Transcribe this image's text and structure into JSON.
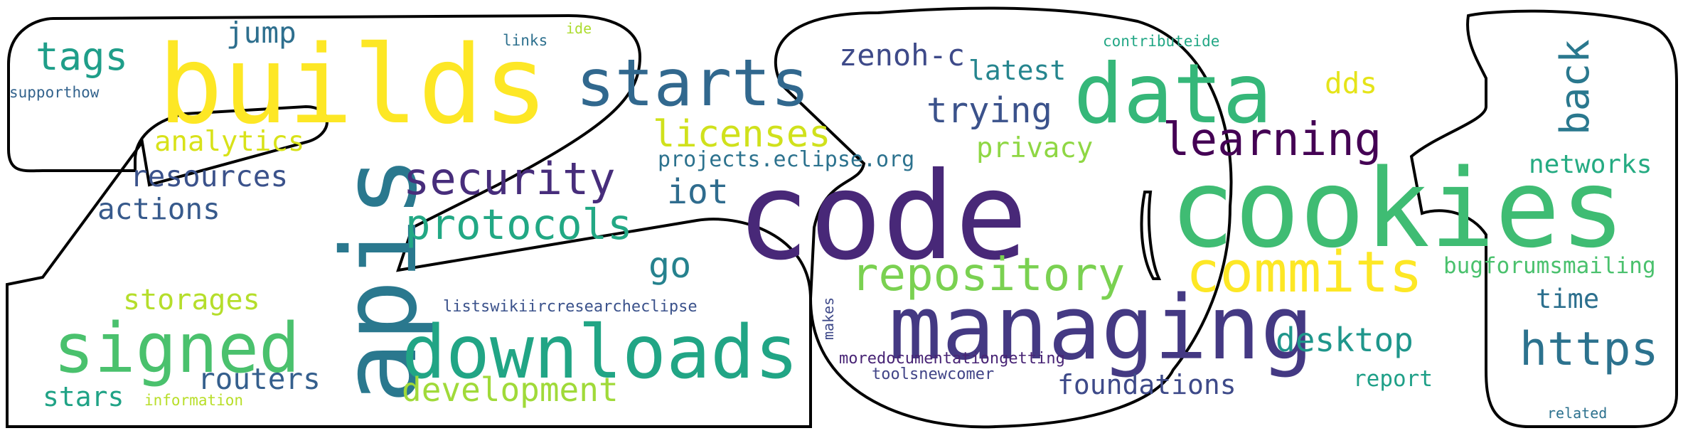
{
  "words": [
    {
      "key": "builds",
      "text": "builds",
      "color": "#fde725"
    },
    {
      "key": "apis",
      "text": "apis",
      "color": "#2a788e"
    },
    {
      "key": "code",
      "text": "code",
      "color": "#482878"
    },
    {
      "key": "cookies",
      "text": "cookies",
      "color": "#3fbc73"
    },
    {
      "key": "managing",
      "text": "managing",
      "color": "#443983"
    },
    {
      "key": "data",
      "text": "data",
      "color": "#35b779"
    },
    {
      "key": "starts",
      "text": "starts",
      "color": "#31688e"
    },
    {
      "key": "downloads",
      "text": "downloads",
      "color": "#21a585"
    },
    {
      "key": "signed",
      "text": "signed",
      "color": "#4ac16d"
    },
    {
      "key": "commits",
      "text": "commits",
      "color": "#fde725"
    },
    {
      "key": "repository",
      "text": "repository",
      "color": "#7ad151"
    },
    {
      "key": "security",
      "text": "security",
      "color": "#472d7b"
    },
    {
      "key": "protocols",
      "text": "protocols",
      "color": "#22a884"
    },
    {
      "key": "learning",
      "text": "learning",
      "color": "#440154"
    },
    {
      "key": "https",
      "text": "https",
      "color": "#2c728e"
    },
    {
      "key": "development",
      "text": "development",
      "color": "#a0da39"
    },
    {
      "key": "licenses",
      "text": "licenses",
      "color": "#d0e11c"
    },
    {
      "key": "tags",
      "text": "tags",
      "color": "#1f9e89"
    },
    {
      "key": "back",
      "text": "back",
      "color": "#2a788e"
    },
    {
      "key": "desktop",
      "text": "desktop",
      "color": "#1f968b"
    },
    {
      "key": "foundations",
      "text": "foundations",
      "color": "#3e4a89"
    },
    {
      "key": "trying",
      "text": "trying",
      "color": "#3b528b"
    },
    {
      "key": "resources",
      "text": "resources",
      "color": "#3b528b"
    },
    {
      "key": "routers",
      "text": "routers",
      "color": "#355f8d"
    },
    {
      "key": "storages",
      "text": "storages",
      "color": "#b5de2b"
    },
    {
      "key": "zenoh-c",
      "text": "zenoh-c",
      "color": "#3e4a89"
    },
    {
      "key": "actions",
      "text": "actions",
      "color": "#375a8c"
    },
    {
      "key": "analytics",
      "text": "analytics",
      "color": "#d8e219"
    },
    {
      "key": "iot",
      "text": "iot",
      "color": "#2f6c8e"
    },
    {
      "key": "go",
      "text": "go",
      "color": "#26828e"
    },
    {
      "key": "jump",
      "text": "jump",
      "color": "#2e6f8e"
    },
    {
      "key": "latest",
      "text": "latest",
      "color": "#25858e"
    },
    {
      "key": "privacy",
      "text": "privacy",
      "color": "#8fd744"
    },
    {
      "key": "dds",
      "text": "dds",
      "color": "#e5e419"
    },
    {
      "key": "networks",
      "text": "networks",
      "color": "#25ab82"
    },
    {
      "key": "stars",
      "text": "stars",
      "color": "#20a386"
    },
    {
      "key": "time",
      "text": "time",
      "color": "#2d708e"
    },
    {
      "key": "bugforumsmailing",
      "text": "bugforumsmailing",
      "color": "#4ac16d"
    },
    {
      "key": "projects",
      "text": "projects.eclipse.org",
      "color": "#2c728e"
    },
    {
      "key": "report",
      "text": "report",
      "color": "#1fa088"
    },
    {
      "key": "listswikiircresearcheclipse",
      "text": "listswikiircresearcheclipse",
      "color": "#3b528b"
    },
    {
      "key": "moredocumentationgetting",
      "text": "moredocumentationgetting",
      "color": "#482475"
    },
    {
      "key": "toolsnewcomer",
      "text": "toolsnewcomer",
      "color": "#414487"
    },
    {
      "key": "makes",
      "text": "makes",
      "color": "#3e4989"
    },
    {
      "key": "contributeide",
      "text": "contributeide",
      "color": "#22a785"
    },
    {
      "key": "supporthow",
      "text": "supporthow",
      "color": "#33638d"
    },
    {
      "key": "links",
      "text": "links",
      "color": "#2d708e"
    },
    {
      "key": "ide",
      "text": "ide",
      "color": "#addc30"
    },
    {
      "key": "information",
      "text": "information",
      "color": "#b8de29"
    },
    {
      "key": "related",
      "text": "related",
      "color": "#2c718e"
    }
  ]
}
